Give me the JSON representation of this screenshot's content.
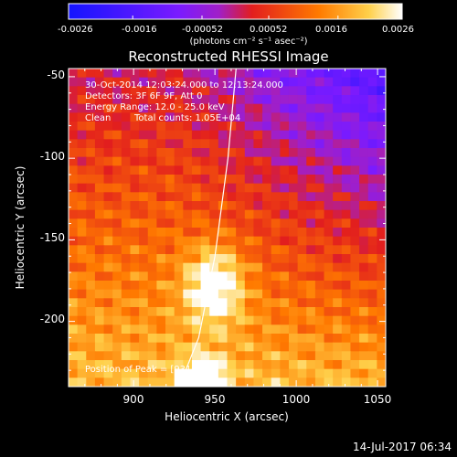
{
  "colorbar": {
    "ticks": [
      "-0.0026",
      "-0.0016",
      "-0.00052",
      "0.00052",
      "0.0016",
      "0.0026"
    ],
    "tick_values": [
      -0.0026,
      -0.0016,
      -0.00052,
      0.00052,
      0.0016,
      0.0026
    ],
    "range": [
      -0.0026,
      0.0026
    ],
    "units_label": "(photons cm⁻² s⁻¹ asec⁻²)"
  },
  "chart_data": {
    "type": "heatmap",
    "title": "Reconstructed RHESSI Image",
    "xlabel": "Heliocentric X (arcsec)",
    "ylabel": "Heliocentric Y (arcsec)",
    "xlim": [
      860,
      1055
    ],
    "ylim": [
      -240,
      -45
    ],
    "xticks": [
      900,
      950,
      1000,
      1050
    ],
    "yticks": [
      -50,
      -100,
      -150,
      -200
    ],
    "limb_curve": [
      [
        963,
        -45
      ],
      [
        958,
        -100
      ],
      [
        950,
        -160
      ],
      [
        940,
        -210
      ],
      [
        928,
        -240
      ]
    ],
    "peak_marker": [
      931,
      -240
    ],
    "annotations": {
      "time_range": "30-Oct-2014 12:03:24.000 to 12:13:24.000",
      "detectors": "Detectors: 3F 6F 9F, Att 0",
      "energy": "Energy Range: 12.0 - 25.0 keV",
      "clean": "Clean",
      "counts": "Total counts: 1.05E+04",
      "peak": "Position of Peak = [931,-240]"
    },
    "colors": {
      "low": "#1a1aff",
      "mid": "#8a1aff",
      "high": "#ffffff"
    }
  },
  "footer": {
    "timestamp": "14-Jul-2017 06:34"
  }
}
